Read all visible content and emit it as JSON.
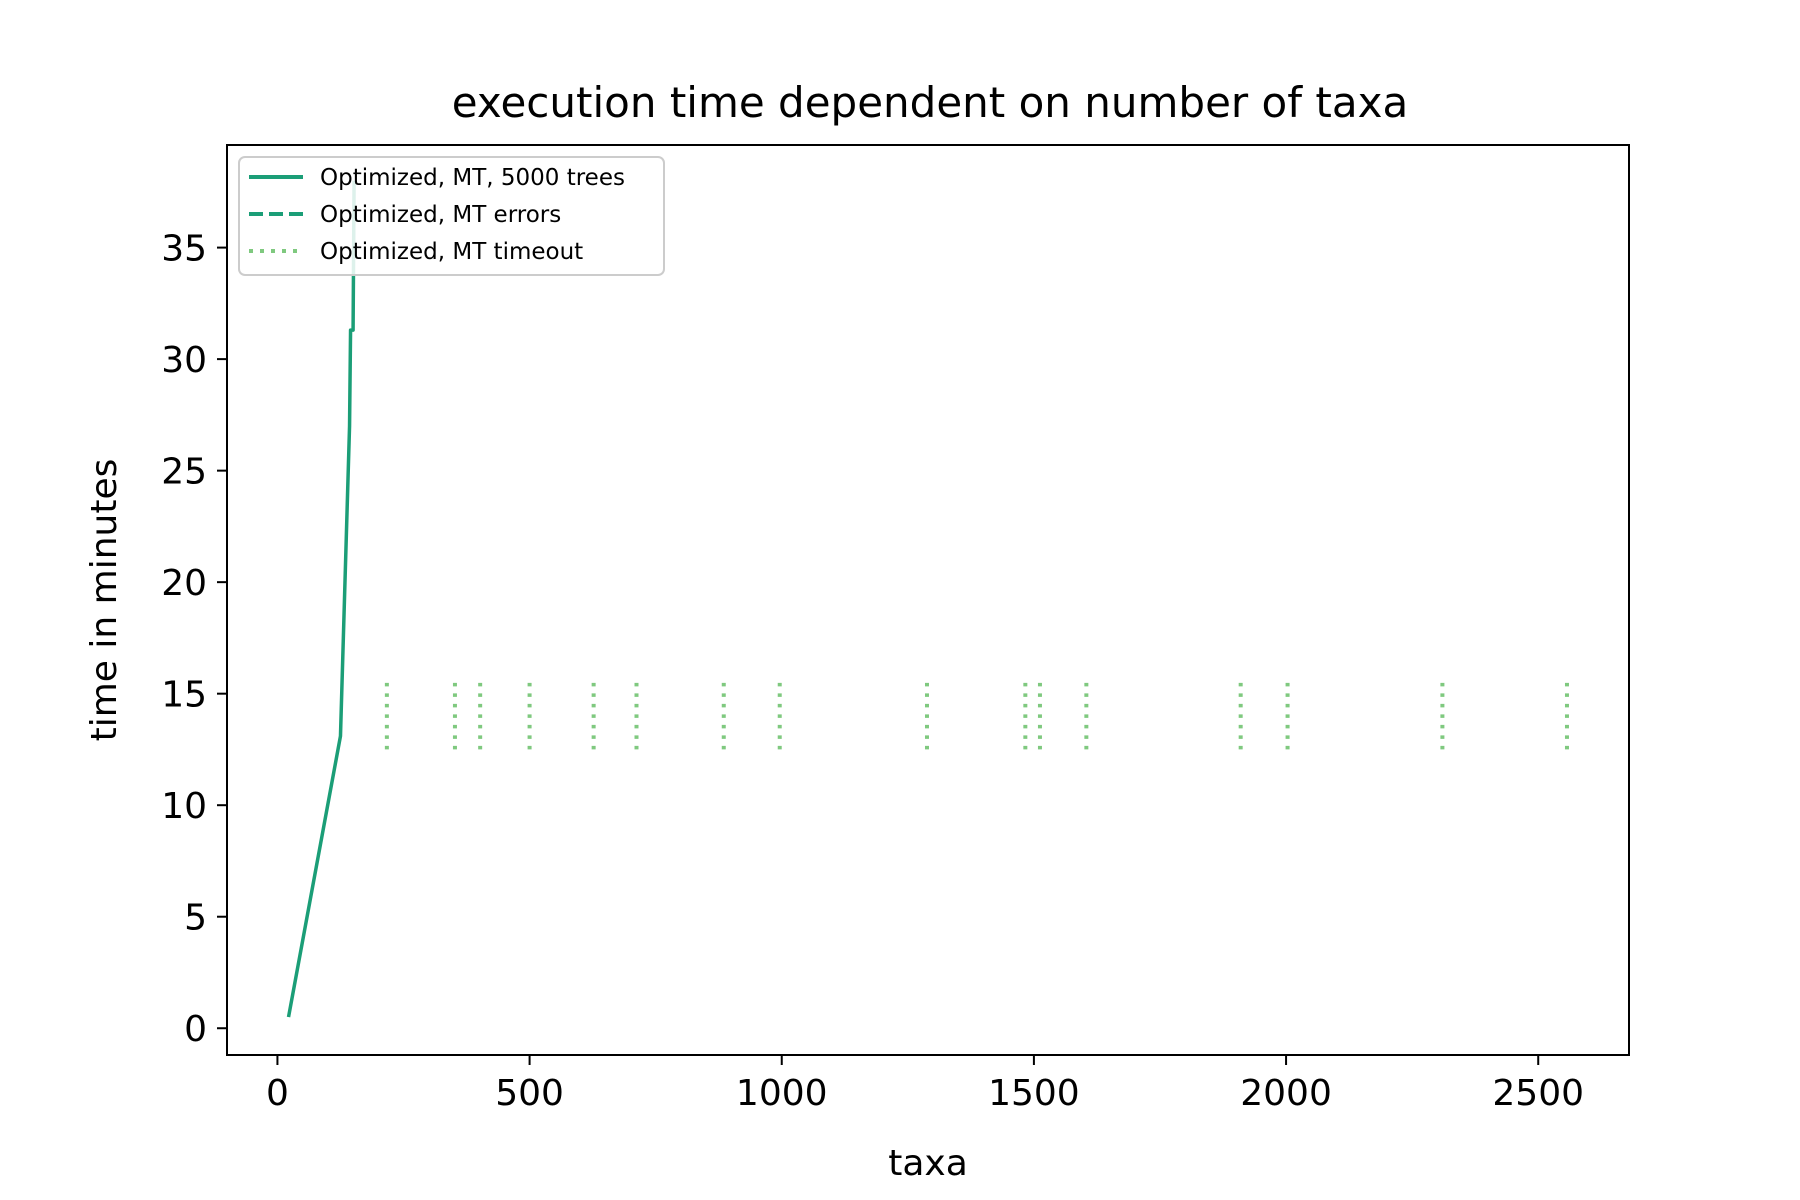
{
  "chart_data": {
    "type": "line",
    "title": "execution time dependent on number of taxa",
    "xlabel": "taxa",
    "ylabel": "time in minutes",
    "xlim": [
      -100,
      2680
    ],
    "ylim": [
      -1.2,
      39.6
    ],
    "xticks": [
      0,
      500,
      1000,
      1500,
      2000,
      2500
    ],
    "yticks": [
      0,
      5,
      10,
      15,
      20,
      25,
      30,
      35
    ],
    "grid": false,
    "legend": "top-left",
    "series": [
      {
        "name": "Optimized, MT, 5000 trees",
        "style": "solid",
        "color": "#1b9e77",
        "x": [
          22,
          125,
          143,
          145,
          150,
          152
        ],
        "y": [
          0.5,
          13.1,
          27.0,
          31.3,
          31.3,
          38.0
        ]
      },
      {
        "name": "Optimized, MT errors",
        "style": "dashed",
        "color": "#1b9e77",
        "x": [],
        "y": []
      },
      {
        "name": "Optimized, MT timeout",
        "style": "dotted",
        "color": "#7fc97f",
        "y_range": [
          12.5,
          15.7
        ],
        "x": [
          217,
          352,
          402,
          500,
          627,
          712,
          885,
          996,
          1288,
          1483,
          1512,
          1604,
          1910,
          2003,
          2310,
          2557
        ]
      }
    ]
  }
}
